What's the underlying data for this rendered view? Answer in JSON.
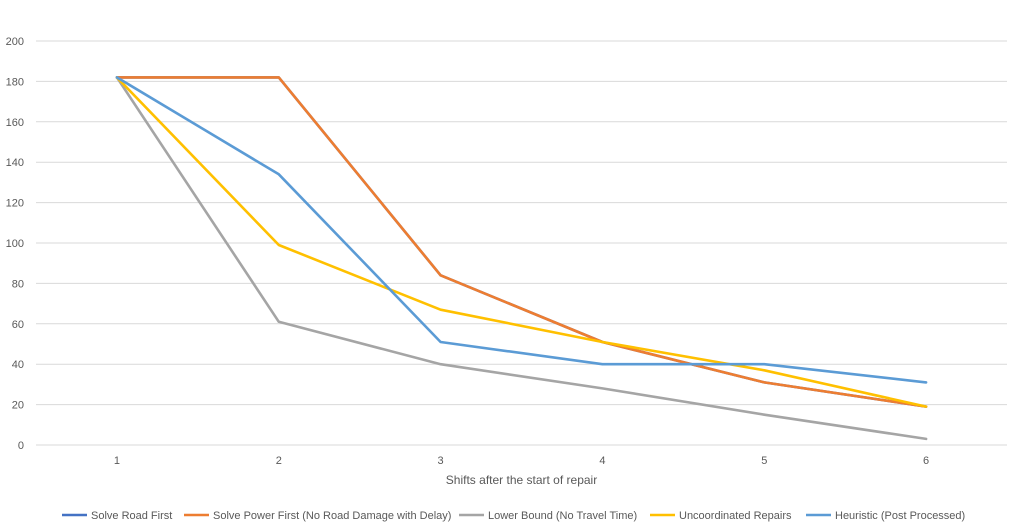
{
  "chart_data": {
    "type": "line",
    "title": "",
    "xlabel": "Shifts after the start of repair",
    "ylabel": "",
    "x": [
      "1",
      "2",
      "3",
      "4",
      "5",
      "6"
    ],
    "ylim": [
      0,
      200
    ],
    "yticks": [
      0,
      20,
      40,
      60,
      80,
      100,
      120,
      140,
      160,
      180,
      200
    ],
    "grid": true,
    "legend_position": "bottom",
    "series": [
      {
        "name": "Solve Road First",
        "color": "#4472C4",
        "values": [
          182,
          182,
          84,
          51,
          31,
          19
        ]
      },
      {
        "name": "Solve Power First (No Road Damage with Delay)",
        "color": "#ED7D31",
        "values": [
          182,
          182,
          84,
          51,
          31,
          19
        ]
      },
      {
        "name": "Lower Bound (No Travel Time)",
        "color": "#A5A5A5",
        "values": [
          182,
          61,
          40,
          28,
          15,
          3
        ]
      },
      {
        "name": "Uncoordinated Repairs",
        "color": "#FFC000",
        "values": [
          182,
          99,
          67,
          51,
          37,
          19
        ]
      },
      {
        "name": "Heuristic (Post Processed)",
        "color": "#5B9BD5",
        "values": [
          182,
          134,
          51,
          40,
          40,
          31
        ]
      }
    ]
  }
}
